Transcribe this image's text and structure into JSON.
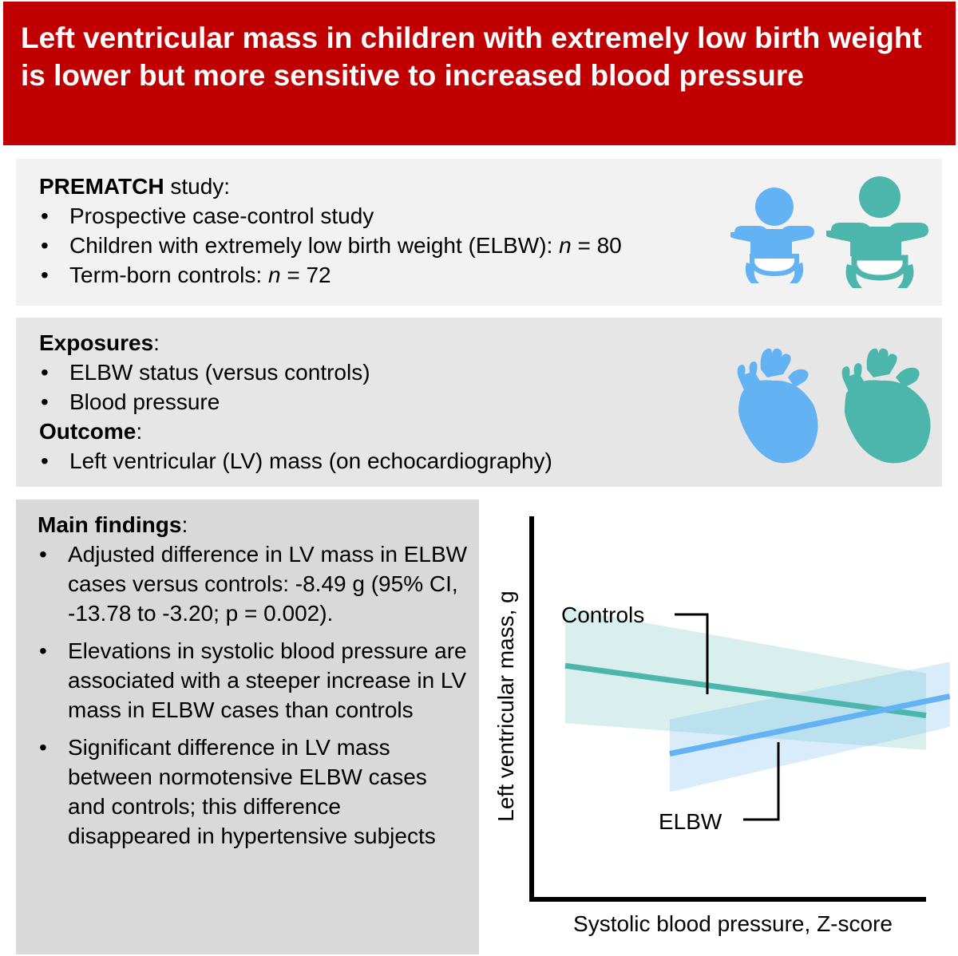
{
  "title": "Left ventricular mass in children with extremely low birth weight is lower but more sensitive to increased blood pressure",
  "colors": {
    "banner": "#c00000",
    "elbw": "#63b3f4",
    "controls": "#4db6ac"
  },
  "study": {
    "heading_bold": "PREMATCH",
    "heading_rest": " study:",
    "bullets": [
      "Prospective case-control study",
      "Children with extremely low birth weight (ELBW): ",
      "Term-born controls: "
    ],
    "n_label": "n",
    "elbw_n": " = 80",
    "controls_n": " = 72",
    "icons": [
      "baby-elbw-icon",
      "baby-control-icon"
    ]
  },
  "exposures": {
    "heading": "Exposures",
    "items": [
      "ELBW status (versus controls)",
      "Blood pressure"
    ],
    "outcome_heading": "Outcome",
    "outcome_items": [
      "Left ventricular (LV) mass (on echocardiography)"
    ],
    "icons": [
      "heart-elbw-icon",
      "heart-control-icon"
    ]
  },
  "findings": {
    "heading": "Main findings",
    "items": [
      "Adjusted difference in LV mass in ELBW cases versus controls: -8.49 g (95% CI, -13.78 to -3.20; p = 0.002).",
      "Elevations in systolic blood pressure are associated with a steeper increase in LV mass in ELBW cases than controls",
      "Significant difference in LV mass between normotensive ELBW cases and controls; this difference disappeared in hypertensive subjects"
    ]
  },
  "chart_data": {
    "type": "line",
    "xlabel": "Systolic blood pressure, Z-score",
    "ylabel": "Left ventricular mass, g",
    "xlim": [
      0,
      10
    ],
    "ylim": [
      0,
      10
    ],
    "series": [
      {
        "name": "Controls",
        "x": [
          0.85,
          10.0
        ],
        "y": [
          6.1,
          4.8
        ],
        "band_lower": [
          4.6,
          3.9
        ],
        "band_upper": [
          7.6,
          5.9
        ]
      },
      {
        "name": "ELBW",
        "x": [
          3.5,
          10.6
        ],
        "y": [
          3.8,
          5.3
        ],
        "band_lower": [
          2.8,
          4.5
        ],
        "band_upper": [
          4.7,
          6.2
        ]
      }
    ]
  }
}
